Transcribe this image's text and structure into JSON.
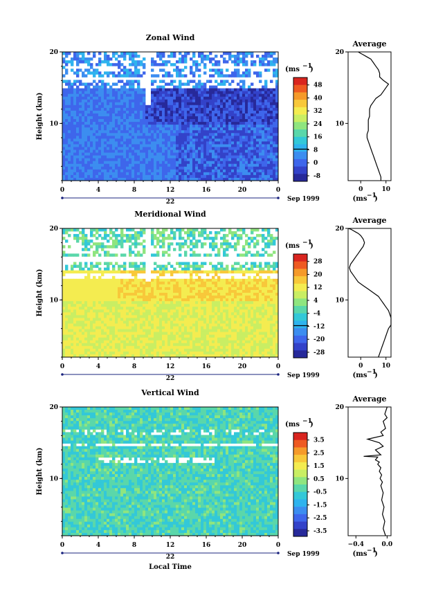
{
  "panels": [
    {
      "title": "Zonal Wind",
      "units": "(ms",
      "units_exp": "−1",
      "cbar_ticks": [
        "48",
        "40",
        "32",
        "24",
        "16",
        "8",
        "0",
        "-8"
      ],
      "cbar_colors": [
        "#d9251f",
        "#ee5a22",
        "#f59a2a",
        "#f8c83a",
        "#f4ec50",
        "#c9ee63",
        "#8fe57f",
        "#5ad7aa",
        "#33c8d8",
        "#2fb3ee",
        "#3c8df0",
        "#3e66eb",
        "#3342c9",
        "#27299a"
      ],
      "avg_xticks": [
        "0",
        "10"
      ],
      "avg_xlim": [
        -5,
        12
      ]
    },
    {
      "title": "Meridional Wind",
      "units": "(ms",
      "units_exp": "−1",
      "cbar_ticks": [
        "28",
        "20",
        "12",
        "4",
        "-4",
        "-12",
        "-20",
        "-28"
      ],
      "cbar_colors": [
        "#d9251f",
        "#ee5a22",
        "#f59a2a",
        "#f8c83a",
        "#f4ec50",
        "#c9ee63",
        "#8fe57f",
        "#5ad7aa",
        "#33c8d8",
        "#2fb3ee",
        "#3c8df0",
        "#3e66eb",
        "#3342c9",
        "#27299a"
      ],
      "avg_xticks": [
        "0",
        "10"
      ],
      "avg_xlim": [
        -5,
        12
      ]
    },
    {
      "title": "Vertical Wind",
      "units": "(ms",
      "units_exp": "−1",
      "cbar_ticks": [
        "3.5",
        "2.5",
        "1.5",
        "0.5",
        "-0.5",
        "-1.5",
        "-2.5",
        "-3.5"
      ],
      "cbar_colors": [
        "#d9251f",
        "#ee5a22",
        "#f59a2a",
        "#f8c83a",
        "#f4ec50",
        "#c9ee63",
        "#8fe57f",
        "#5ad7aa",
        "#33c8d8",
        "#2fb3ee",
        "#3c8df0",
        "#3e66eb",
        "#3342c9",
        "#27299a"
      ],
      "avg_xticks": [
        "−0.4",
        "0.0"
      ],
      "avg_xlim": [
        -0.5,
        0.05
      ]
    }
  ],
  "ylabel": "Height (km)",
  "y_ticks": [
    "10",
    "20"
  ],
  "x_ticks": [
    "0",
    "4",
    "8",
    "12",
    "16",
    "20",
    "0"
  ],
  "date_label": "22",
  "month_label": "Sep 1999",
  "avg_title": "Average",
  "avg_units": "(ms",
  "avg_units_exp": "−1",
  "xlabel": "Local Time",
  "chart_data": [
    {
      "type": "heatmap",
      "title": "Zonal Wind",
      "xlabel": "Local Time",
      "ylabel": "Height (km)",
      "xlim": [
        0,
        24
      ],
      "ylim": [
        2,
        20
      ],
      "colorbar_units": "ms^-1",
      "colorbar_range": [
        -8,
        48
      ]
    },
    {
      "type": "line",
      "title": "Average",
      "ylabel": "Height (km)",
      "xlabel": "ms^-1",
      "ylim": [
        2,
        20
      ],
      "x": [
        8,
        8,
        7.5,
        7,
        6.5,
        6,
        5.5,
        5,
        4.5,
        4,
        3.5,
        3,
        2.5,
        2.5,
        3,
        3,
        3,
        3,
        3.5,
        3.5,
        3.5,
        4,
        5,
        6,
        8,
        9,
        10,
        11,
        9,
        7.5,
        7.5,
        7,
        6,
        5,
        4,
        3,
        2,
        1,
        0,
        -1
      ],
      "y": [
        2,
        2.5,
        3,
        3.5,
        4,
        4.5,
        5,
        5.5,
        6,
        6.5,
        7,
        7.5,
        8,
        8.5,
        9,
        9.5,
        10,
        10.5,
        11,
        11.5,
        12,
        12.5,
        13,
        13.5,
        14,
        14.5,
        15,
        15.5,
        16,
        16.5,
        17,
        17.5,
        18,
        18.5,
        19,
        19.2,
        19.4,
        19.6,
        19.8,
        20
      ]
    },
    {
      "type": "heatmap",
      "title": "Meridional Wind",
      "xlabel": "Local Time",
      "ylabel": "Height (km)",
      "xlim": [
        0,
        24
      ],
      "ylim": [
        2,
        20
      ],
      "colorbar_units": "ms^-1",
      "colorbar_range": [
        -28,
        28
      ]
    },
    {
      "type": "line",
      "title": "Average",
      "ylabel": "Height (km)",
      "xlabel": "ms^-1",
      "ylim": [
        2,
        20
      ],
      "x": [
        7,
        7.5,
        8,
        8.5,
        9,
        9.5,
        10,
        10.5,
        11,
        12,
        12,
        11,
        10,
        9,
        8,
        7,
        5,
        3,
        1,
        -1,
        -2,
        -3,
        -4,
        -4.5,
        -4,
        -3,
        -2,
        -1,
        0,
        1,
        1.5,
        1,
        0,
        -1,
        -2,
        -3,
        -4,
        -5
      ],
      "y": [
        2,
        2.5,
        3,
        3.5,
        4,
        4.5,
        5,
        5.5,
        6,
        6.5,
        7.5,
        8.5,
        9,
        9.5,
        10,
        10.5,
        11,
        11.5,
        12,
        12.5,
        13,
        13.5,
        14,
        14.5,
        15,
        15.5,
        16,
        16.5,
        17,
        17.5,
        18,
        18.5,
        19,
        19.3,
        19.5,
        19.7,
        19.9,
        20
      ]
    },
    {
      "type": "heatmap",
      "title": "Vertical Wind",
      "xlabel": "Local Time",
      "ylabel": "Height (km)",
      "xlim": [
        0,
        24
      ],
      "ylim": [
        2,
        20
      ],
      "colorbar_units": "ms^-1",
      "colorbar_range": [
        -3.5,
        3.5
      ]
    },
    {
      "type": "line",
      "title": "Average",
      "ylabel": "Height (km)",
      "xlabel": "ms^-1",
      "ylim": [
        2,
        20
      ],
      "x": [
        -0.02,
        -0.05,
        -0.03,
        -0.06,
        -0.04,
        -0.07,
        -0.05,
        -0.08,
        -0.06,
        -0.09,
        -0.07,
        -0.1,
        -0.08,
        -0.12,
        -0.1,
        -0.15,
        -0.12,
        -0.3,
        -0.08,
        -0.15,
        -0.05,
        -0.1,
        -0.25,
        -0.05,
        -0.08,
        -0.02,
        -0.05,
        0.0,
        -0.03,
        0.0
      ],
      "y": [
        2,
        3,
        4,
        5,
        6,
        7,
        8,
        9,
        9.5,
        10,
        10.5,
        11,
        11.5,
        12,
        12.3,
        12.6,
        13,
        13.1,
        13.3,
        14,
        14.5,
        15,
        15.5,
        16,
        16.5,
        17,
        18,
        18.5,
        19,
        20
      ]
    }
  ]
}
